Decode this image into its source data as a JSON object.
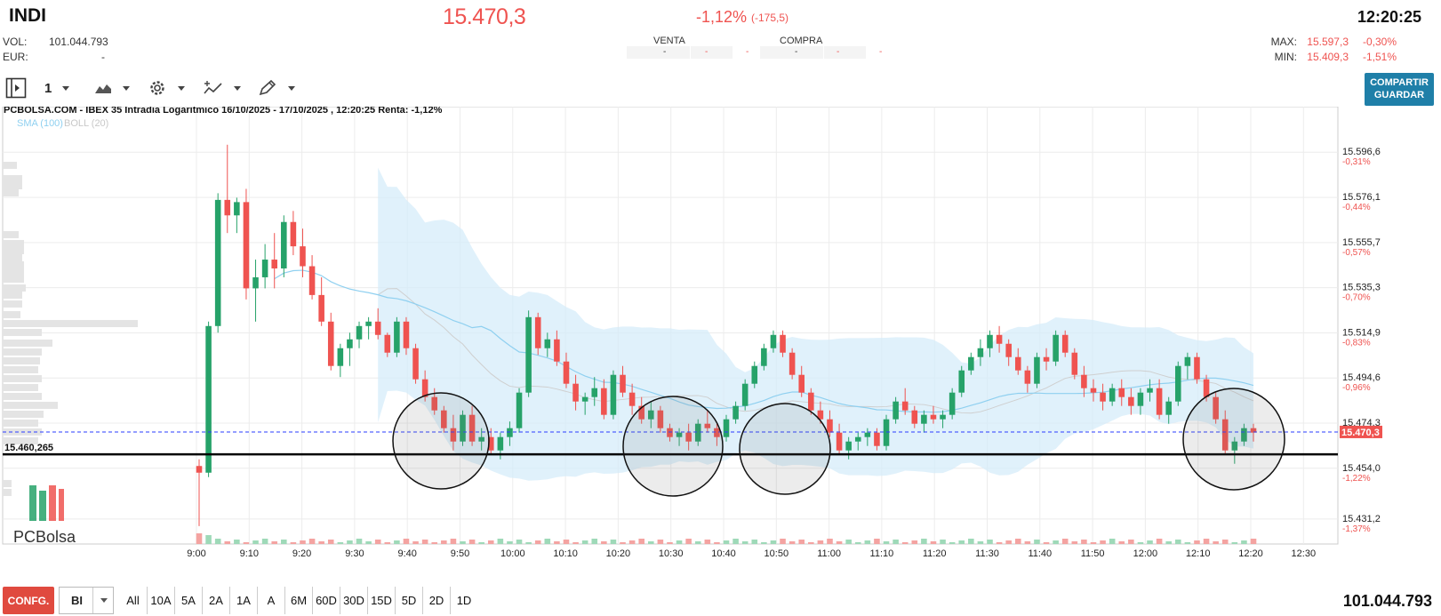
{
  "header": {
    "ticker": "INDI",
    "price": "15.470,3",
    "change_pct": "-1,12%",
    "change_abs": "(-175,5)",
    "time": "12:20:25",
    "vol_label": "VOL:",
    "vol_value": "101.044.793",
    "eur_label": "EUR:",
    "eur_value": "-",
    "max_label": "MAX:",
    "max_value": "15.597,3",
    "max_pct": "-0,30%",
    "min_label": "MIN:",
    "min_value": "15.409,3",
    "min_pct": "-1,51%"
  },
  "order_book": {
    "sell_label": "VENTA",
    "buy_label": "COMPRA",
    "dash": "-"
  },
  "toolbar": {
    "interval": "1",
    "share_line1": "COMPARTIR",
    "share_line2": "GUARDAR"
  },
  "chart_header": {
    "title": "PCBOLSA.COM - IBEX 35 Intradia Logaritmico 16/10/2025 - 17/10/2025 , 12:20:25 Renta: -1,12%",
    "sma_label": "SMA (100)",
    "boll_label": "BOLL (20)",
    "support_label": "15.460,265",
    "last_price_label": "15.470,3",
    "logo_text": "PCBolsa"
  },
  "chart_data": {
    "type": "candlestick",
    "title": "PCBOLSA.COM - IBEX 35 Intradia Logaritmico 16/10/2025 - 17/10/2025 , 12:20:25 Renta: -1,12%",
    "scale": "log",
    "y_range": [
      15420,
      15610
    ],
    "x_ticks": [
      "9:00",
      "9:10",
      "9:20",
      "9:30",
      "9:40",
      "9:50",
      "10:00",
      "10:10",
      "10:20",
      "10:30",
      "10:40",
      "10:50",
      "11:00",
      "11:10",
      "11:20",
      "11:30",
      "11:40",
      "11:50",
      "12:00",
      "12:10",
      "12:20",
      "12:30"
    ],
    "y_ticks": [
      {
        "price": "15.596,6",
        "pct": "-0,31%"
      },
      {
        "price": "15.576,1",
        "pct": "-0,44%"
      },
      {
        "price": "15.555,7",
        "pct": "-0,57%"
      },
      {
        "price": "15.535,3",
        "pct": "-0,70%"
      },
      {
        "price": "15.514,9",
        "pct": "-0,83%"
      },
      {
        "price": "15.494,6",
        "pct": "-0,96%"
      },
      {
        "price": "15.474,3",
        "pct": "-1,09%"
      },
      {
        "price": "15.454,0",
        "pct": "-1,22%"
      },
      {
        "price": "15.431,2",
        "pct": "-1,37%"
      }
    ],
    "last_price": 15470.3,
    "support_level": 15460.265,
    "candles_ohlc": [
      [
        15455,
        15458,
        15428,
        15452
      ],
      [
        15452,
        15520,
        15450,
        15518
      ],
      [
        15518,
        15578,
        15515,
        15575
      ],
      [
        15575,
        15600,
        15560,
        15568
      ],
      [
        15568,
        15576,
        15560,
        15574
      ],
      [
        15574,
        15580,
        15530,
        15535
      ],
      [
        15535,
        15548,
        15520,
        15540
      ],
      [
        15540,
        15555,
        15535,
        15548
      ],
      [
        15548,
        15560,
        15535,
        15544
      ],
      [
        15544,
        15568,
        15540,
        15565
      ],
      [
        15565,
        15570,
        15550,
        15554
      ],
      [
        15554,
        15562,
        15540,
        15545
      ],
      [
        15545,
        15550,
        15530,
        15532
      ],
      [
        15532,
        15540,
        15518,
        15520
      ],
      [
        15520,
        15524,
        15498,
        15500
      ],
      [
        15500,
        15510,
        15495,
        15508
      ],
      [
        15508,
        15515,
        15500,
        15512
      ],
      [
        15512,
        15520,
        15508,
        15518
      ],
      [
        15518,
        15522,
        15512,
        15520
      ],
      [
        15520,
        15526,
        15512,
        15514
      ],
      [
        15514,
        15515,
        15504,
        15506
      ],
      [
        15506,
        15522,
        15504,
        15520
      ],
      [
        15520,
        15522,
        15505,
        15508
      ],
      [
        15508,
        15510,
        15492,
        15494
      ],
      [
        15494,
        15498,
        15484,
        15486
      ],
      [
        15486,
        15490,
        15478,
        15480
      ],
      [
        15480,
        15482,
        15470,
        15472
      ],
      [
        15472,
        15478,
        15462,
        15466
      ],
      [
        15466,
        15480,
        15464,
        15478
      ],
      [
        15478,
        15482,
        15464,
        15466
      ],
      [
        15466,
        15472,
        15462,
        15468
      ],
      [
        15468,
        15472,
        15460,
        15462
      ],
      [
        15462,
        15470,
        15458,
        15468
      ],
      [
        15468,
        15475,
        15464,
        15472
      ],
      [
        15472,
        15490,
        15470,
        15488
      ],
      [
        15488,
        15525,
        15486,
        15522
      ],
      [
        15522,
        15524,
        15505,
        15508
      ],
      [
        15508,
        15515,
        15504,
        15512
      ],
      [
        15512,
        15516,
        15500,
        15502
      ],
      [
        15502,
        15506,
        15490,
        15492
      ],
      [
        15492,
        15496,
        15480,
        15484
      ],
      [
        15484,
        15488,
        15478,
        15486
      ],
      [
        15486,
        15495,
        15482,
        15490
      ],
      [
        15490,
        15494,
        15476,
        15478
      ],
      [
        15478,
        15498,
        15476,
        15496
      ],
      [
        15496,
        15500,
        15486,
        15488
      ],
      [
        15488,
        15492,
        15478,
        15482
      ],
      [
        15482,
        15486,
        15474,
        15476
      ],
      [
        15476,
        15484,
        15472,
        15480
      ],
      [
        15480,
        15482,
        15470,
        15472
      ],
      [
        15472,
        15474,
        15466,
        15468
      ],
      [
        15468,
        15472,
        15464,
        15470
      ],
      [
        15470,
        15474,
        15462,
        15466
      ],
      [
        15466,
        15476,
        15464,
        15474
      ],
      [
        15474,
        15480,
        15470,
        15472
      ],
      [
        15472,
        15474,
        15464,
        15468
      ],
      [
        15468,
        15478,
        15466,
        15476
      ],
      [
        15476,
        15484,
        15474,
        15482
      ],
      [
        15482,
        15494,
        15480,
        15492
      ],
      [
        15492,
        15502,
        15490,
        15500
      ],
      [
        15500,
        15510,
        15498,
        15508
      ],
      [
        15508,
        15516,
        15506,
        15514
      ],
      [
        15514,
        15516,
        15504,
        15506
      ],
      [
        15506,
        15508,
        15494,
        15496
      ],
      [
        15496,
        15500,
        15486,
        15488
      ],
      [
        15488,
        15490,
        15478,
        15480
      ],
      [
        15480,
        15484,
        15474,
        15476
      ],
      [
        15476,
        15480,
        15468,
        15470
      ],
      [
        15470,
        15474,
        15460,
        15462
      ],
      [
        15462,
        15468,
        15458,
        15466
      ],
      [
        15466,
        15470,
        15462,
        15468
      ],
      [
        15468,
        15472,
        15464,
        15470
      ],
      [
        15470,
        15472,
        15462,
        15464
      ],
      [
        15464,
        15478,
        15462,
        15476
      ],
      [
        15476,
        15486,
        15474,
        15484
      ],
      [
        15484,
        15490,
        15478,
        15480
      ],
      [
        15480,
        15482,
        15472,
        15474
      ],
      [
        15474,
        15480,
        15470,
        15478
      ],
      [
        15478,
        15482,
        15474,
        15476
      ],
      [
        15476,
        15480,
        15472,
        15478
      ],
      [
        15478,
        15490,
        15476,
        15488
      ],
      [
        15488,
        15500,
        15486,
        15498
      ],
      [
        15498,
        15506,
        15496,
        15504
      ],
      [
        15504,
        15512,
        15500,
        15508
      ],
      [
        15508,
        15516,
        15504,
        15514
      ],
      [
        15514,
        15518,
        15506,
        15510
      ],
      [
        15510,
        15512,
        15500,
        15504
      ],
      [
        15504,
        15508,
        15496,
        15498
      ],
      [
        15498,
        15500,
        15488,
        15492
      ],
      [
        15492,
        15506,
        15490,
        15504
      ],
      [
        15504,
        15508,
        15498,
        15502
      ],
      [
        15502,
        15516,
        15500,
        15514
      ],
      [
        15514,
        15516,
        15504,
        15506
      ],
      [
        15506,
        15508,
        15494,
        15496
      ],
      [
        15496,
        15500,
        15486,
        15490
      ],
      [
        15490,
        15494,
        15484,
        15488
      ],
      [
        15488,
        15492,
        15480,
        15484
      ],
      [
        15484,
        15492,
        15482,
        15490
      ],
      [
        15490,
        15494,
        15482,
        15486
      ],
      [
        15486,
        15490,
        15478,
        15482
      ],
      [
        15482,
        15490,
        15478,
        15488
      ],
      [
        15488,
        15494,
        15484,
        15490
      ],
      [
        15490,
        15494,
        15476,
        15478
      ],
      [
        15478,
        15486,
        15474,
        15484
      ],
      [
        15484,
        15502,
        15482,
        15500
      ],
      [
        15500,
        15506,
        15494,
        15504
      ],
      [
        15504,
        15506,
        15492,
        15494
      ],
      [
        15494,
        15496,
        15484,
        15486
      ],
      [
        15486,
        15488,
        15474,
        15476
      ],
      [
        15476,
        15480,
        15460,
        15462
      ],
      [
        15462,
        15468,
        15456,
        15466
      ],
      [
        15466,
        15474,
        15464,
        15472
      ],
      [
        15472,
        15474,
        15466,
        15470
      ]
    ],
    "bollinger_band": true,
    "sma_line": true,
    "volume_profile": true
  },
  "bottom_bar": {
    "config_label": "CONFG.",
    "mode_label": "BI",
    "ranges": [
      "All",
      "10A",
      "5A",
      "2A",
      "1A",
      "A",
      "6M",
      "60D",
      "30D",
      "15D",
      "5D",
      "2D",
      "1D"
    ],
    "volume": "101.044.793"
  },
  "colors": {
    "up": "#26a269",
    "down": "#ef5350",
    "band": "#d6ecfa",
    "sma": "#8fd0f0",
    "price_line": "#2a3dff",
    "last_price_bg": "#ef5350",
    "share_bg": "#1f7fa8",
    "config_bg": "#e04a3f"
  }
}
